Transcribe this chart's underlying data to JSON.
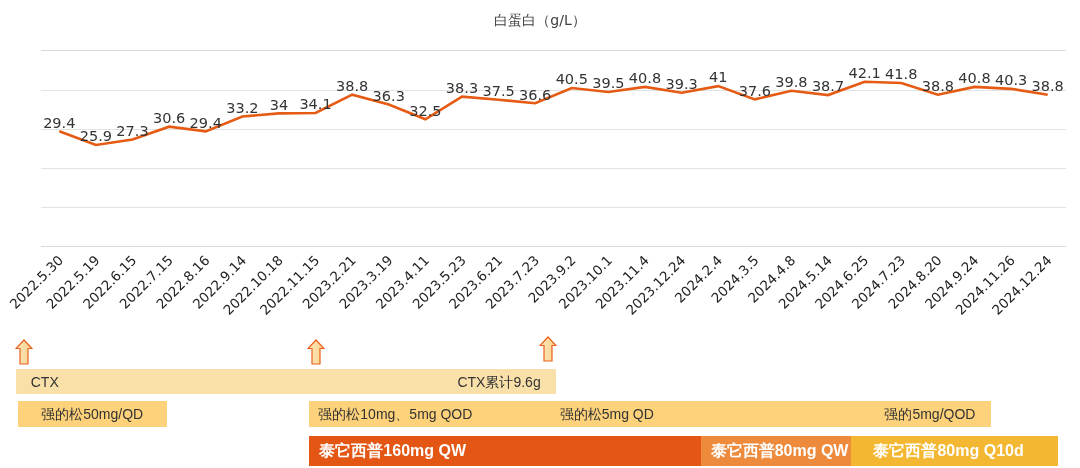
{
  "chart_data": {
    "type": "line",
    "title": "白蛋白（g/L）",
    "categories": [
      "2022.5.30",
      "2022.5.19",
      "2022.6.15",
      "2022.7.15",
      "2022.8.16",
      "2022.9.14",
      "2022.10.18",
      "2022.11.15",
      "2023.2.21",
      "2023.3.19",
      "2023.4.11",
      "2023.5.23",
      "2023.6.21",
      "2023.7.23",
      "2023.9.2",
      "2023.10.1",
      "2023.11.4",
      "2023.12.24",
      "2024.2.4",
      "2024.3.5",
      "2024.4.8",
      "2024.5.14",
      "2024.6.25",
      "2024.7.23",
      "2024.8.20",
      "2024.9.24",
      "2024.11.26",
      "2024.12.24"
    ],
    "values": [
      29.4,
      25.9,
      27.3,
      30.6,
      29.4,
      33.2,
      34,
      34.1,
      38.8,
      36.3,
      32.5,
      38.3,
      37.5,
      36.6,
      40.5,
      39.5,
      40.8,
      39.3,
      41,
      37.6,
      39.8,
      38.7,
      42.1,
      41.8,
      38.8,
      40.8,
      40.3,
      38.8
    ],
    "color": "#e55b13",
    "ylim": [
      0,
      50
    ],
    "yticks": [
      {
        "value": 0,
        "label": null
      },
      {
        "value": 10,
        "label": null
      },
      {
        "value": 20,
        "label": null
      },
      {
        "value": 30,
        "label": null
      },
      {
        "value": 40,
        "label": null
      },
      {
        "value": 50,
        "label": null
      }
    ],
    "grid": "y",
    "tick_labels": "x",
    "data_labels": true,
    "annotations": [
      "CTX",
      "CTX累计9.6g",
      "强的松50mg/QD",
      "强的松10mg、5mg QOD",
      "强的松5mg QD",
      "强的5mg/QOD",
      "泰它西普160mg QW",
      "泰它西普80mg QW",
      "泰它西普80mg Q10d"
    ]
  }
}
